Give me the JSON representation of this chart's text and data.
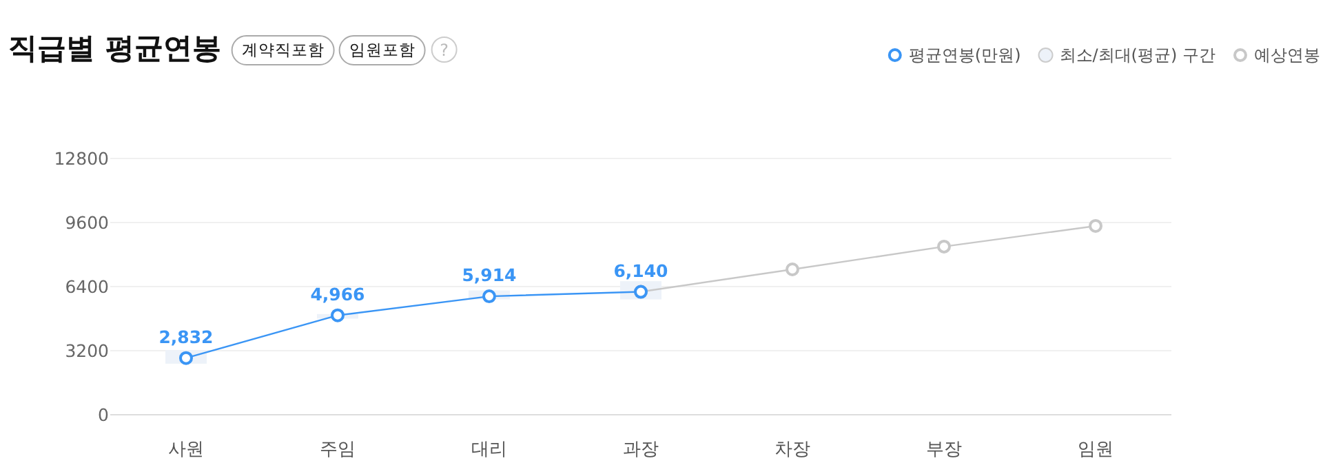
{
  "chart_data": {
    "type": "line",
    "title": "직급별 평균연봉",
    "annotations": [
      "계약직포함",
      "임원포함",
      "?"
    ],
    "categories": [
      "사원",
      "주임",
      "대리",
      "과장",
      "차장",
      "부장",
      "임원"
    ],
    "series": [
      {
        "name": "평균연봉(만원)",
        "color": "#3a95f5",
        "values": [
          2832,
          4966,
          5914,
          6140,
          null,
          null,
          null
        ],
        "value_labels": [
          "2,832",
          "4,966",
          "5,914",
          "6,140",
          null,
          null,
          null
        ]
      },
      {
        "name": "최소/최대(평균) 구간",
        "type": "bar",
        "color": "#edf2f9",
        "base": [
          2550,
          4800,
          5760,
          5760,
          null,
          null,
          null
        ],
        "values": [
          680,
          230,
          450,
          910,
          null,
          null,
          null
        ]
      },
      {
        "name": "예상연봉",
        "color": "#c8c8c8",
        "values": [
          null,
          null,
          null,
          6140,
          7260,
          8400,
          9430
        ]
      }
    ],
    "ylim": [
      0,
      12800
    ],
    "yticks": [
      0,
      3200,
      6400,
      9600,
      12800
    ],
    "grid": "y",
    "legend": "top right",
    "marker": "circle"
  }
}
